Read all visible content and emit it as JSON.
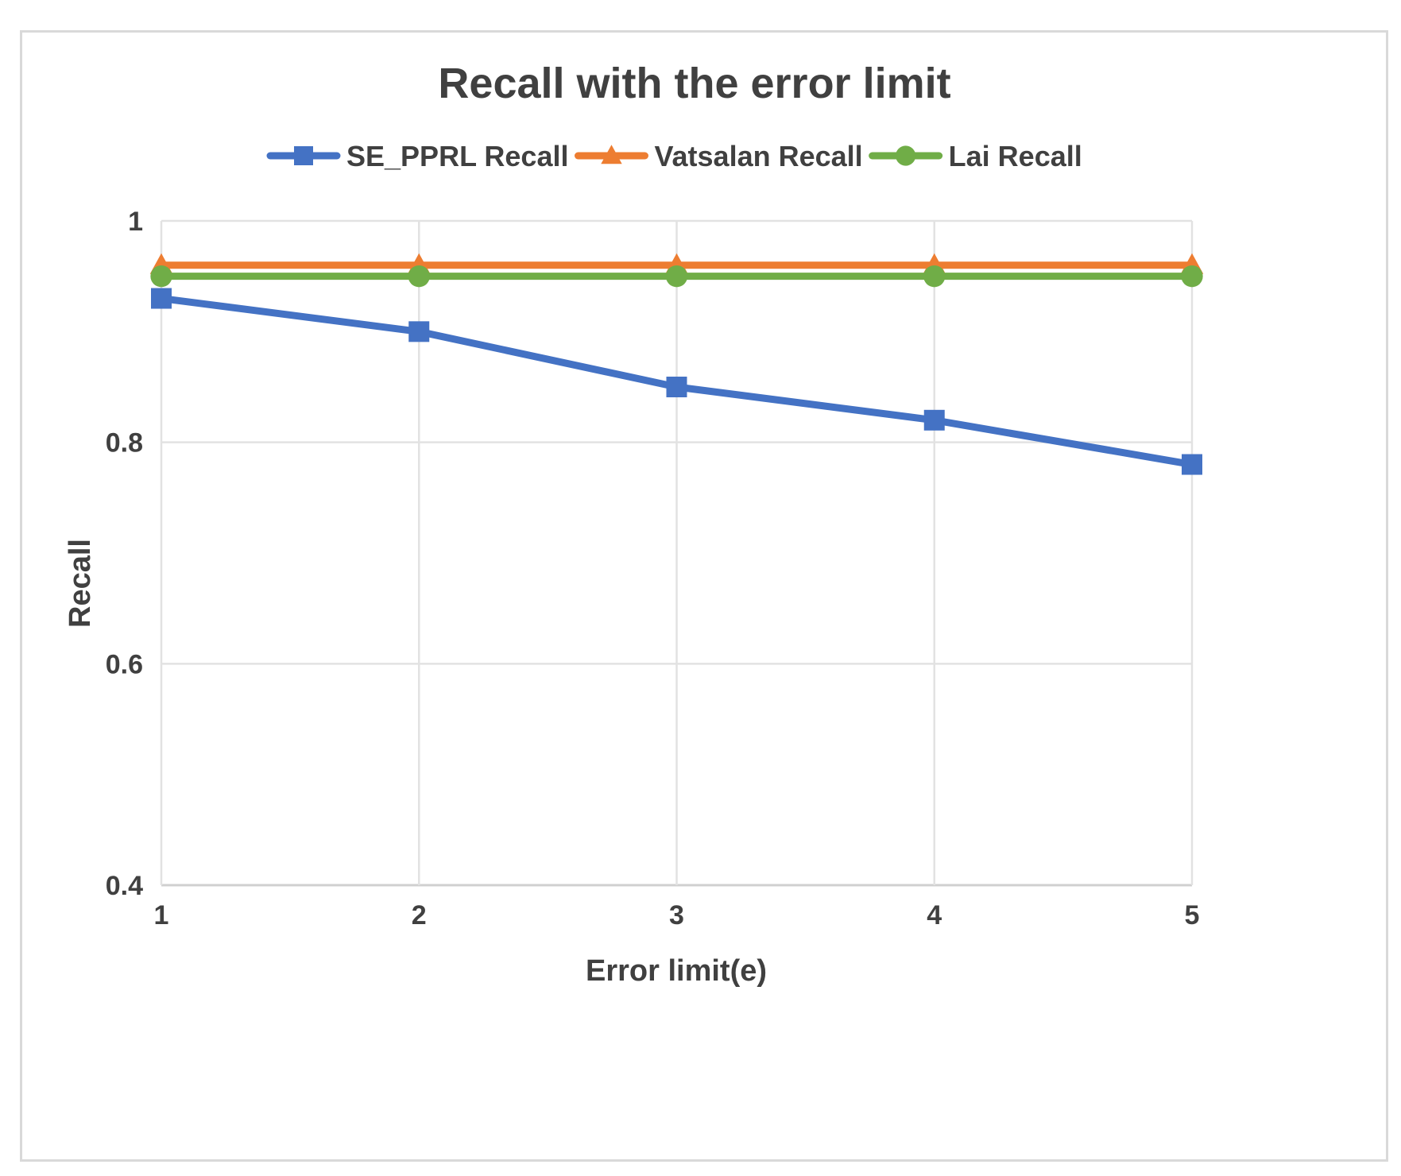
{
  "chart_data": {
    "type": "line",
    "title": "Recall with the error limit",
    "xlabel": "Error limit(e)",
    "ylabel": "Recall",
    "x": [
      1,
      2,
      3,
      4,
      5
    ],
    "x_tick_labels": [
      "1",
      "2",
      "3",
      "4",
      "5"
    ],
    "ylim": [
      0.4,
      1
    ],
    "y_ticks": [
      0.4,
      0.6,
      0.8,
      1
    ],
    "y_tick_labels": [
      "0.4",
      "0.6",
      "0.8",
      "1"
    ],
    "grid": true,
    "legend_position": "top",
    "series": [
      {
        "name": "SE_PPRL Recall",
        "values": [
          0.93,
          0.9,
          0.85,
          0.82,
          0.78
        ],
        "color": "#4472c4",
        "marker": "square"
      },
      {
        "name": "Vatsalan Recall",
        "values": [
          0.96,
          0.96,
          0.96,
          0.96,
          0.96
        ],
        "color": "#ed7d31",
        "marker": "triangle"
      },
      {
        "name": "Lai Recall",
        "values": [
          0.95,
          0.95,
          0.95,
          0.95,
          0.95
        ],
        "color": "#70ad47",
        "marker": "circle"
      }
    ]
  }
}
